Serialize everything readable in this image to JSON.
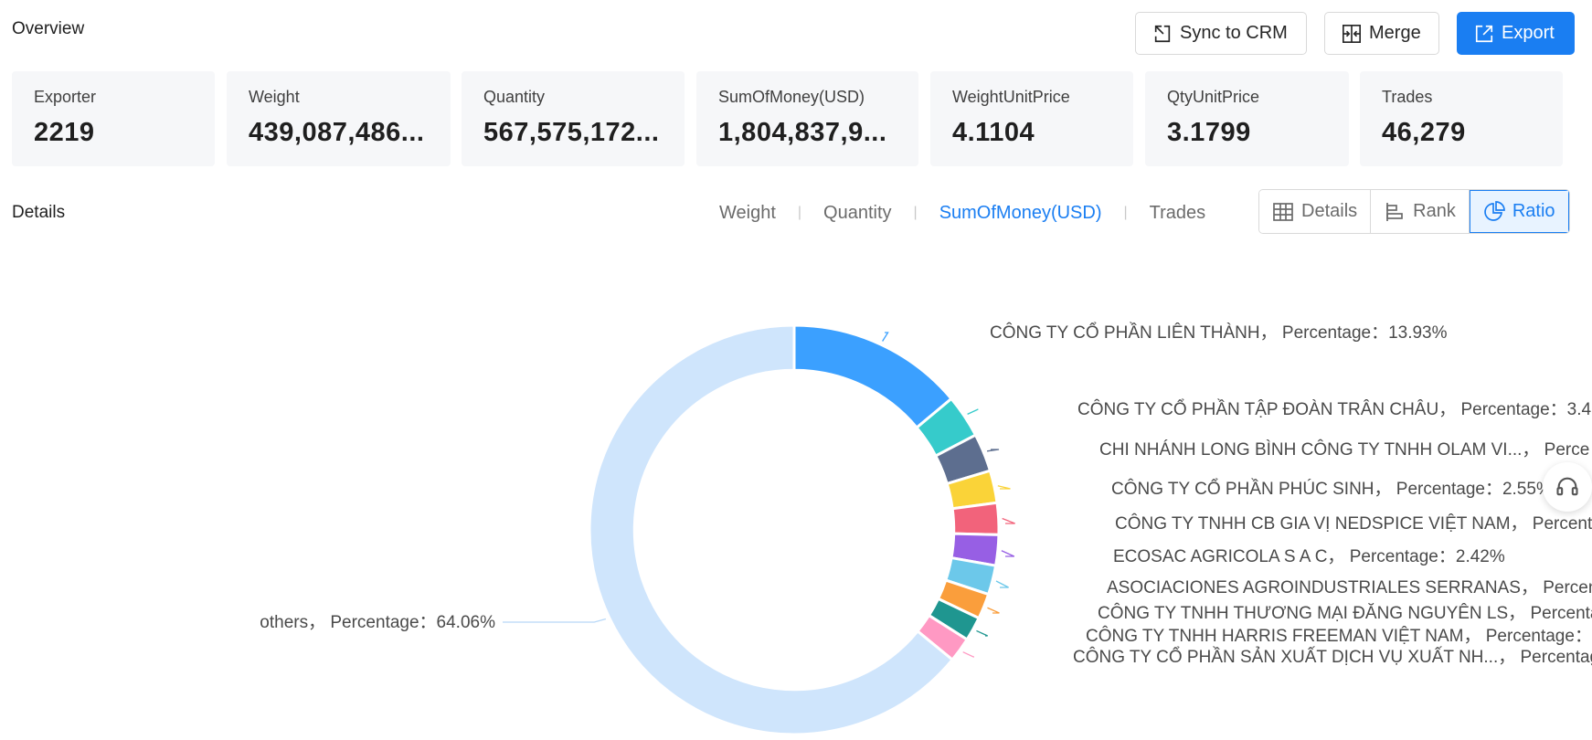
{
  "header": {
    "overview_title": "Overview",
    "sync_label": "Sync to CRM",
    "merge_label": "Merge",
    "export_label": "Export"
  },
  "stats": [
    {
      "label": "Exporter",
      "value": "2219"
    },
    {
      "label": "Weight",
      "value": "439,087,486..."
    },
    {
      "label": "Quantity",
      "value": "567,575,172..."
    },
    {
      "label": "SumOfMoney(USD)",
      "value": "1,804,837,9..."
    },
    {
      "label": "WeightUnitPrice",
      "value": "4.1104"
    },
    {
      "label": "QtyUnitPrice",
      "value": "3.1799"
    },
    {
      "label": "Trades",
      "value": "46,279"
    }
  ],
  "details": {
    "title": "Details",
    "metric_tabs": [
      "Weight",
      "Quantity",
      "SumOfMoney(USD)",
      "Trades"
    ],
    "active_metric": "SumOfMoney(USD)",
    "view_buttons": [
      "Details",
      "Rank",
      "Ratio"
    ],
    "active_view": "Ratio"
  },
  "chart_data": {
    "type": "pie",
    "inner_radius_ratio": 0.78,
    "slices": [
      {
        "name": "CÔNG TY CỔ PHẦN LIÊN THÀNH",
        "label": "CÔNG TY CỔ PHẦN LIÊN THÀNH，  Percentage：13.93%",
        "value": 13.93,
        "color": "#3ba0ff"
      },
      {
        "name": "CÔNG TY CỔ PHẦN TẬP ĐOÀN TRÂN CHÂU",
        "label": "CÔNG TY CỔ PHẦN TẬP ĐOÀN TRÂN CHÂU，  Percentage：3.4",
        "value": 3.4,
        "color": "#36cbcb"
      },
      {
        "name": "CHI NHÁNH LONG BÌNH CÔNG TY TNHH OLAM VI...",
        "label": "CHI NHÁNH LONG BÌNH CÔNG TY TNHH OLAM VI...，  Perce",
        "value": 3.0,
        "color": "#5d6e8f"
      },
      {
        "name": "CÔNG TY CỔ PHẦN PHÚC SINH",
        "label": "CÔNG TY CỔ PHẦN PHÚC SINH，  Percentage：2.55%",
        "value": 2.55,
        "color": "#fad338"
      },
      {
        "name": "CÔNG TY TNHH CB GIA VỊ NEDSPICE VIỆT NAM",
        "label": "CÔNG TY TNHH CB GIA VỊ NEDSPICE VIỆT NAM，  Percent",
        "value": 2.5,
        "color": "#f2637b"
      },
      {
        "name": "ECOSAC AGRICOLA S A C",
        "label": "ECOSAC AGRICOLA S A C，  Percentage：2.42%",
        "value": 2.42,
        "color": "#975fe4"
      },
      {
        "name": "ASOCIACIONES AGROINDUSTRIALES SERRANAS",
        "label": "ASOCIACIONES AGROINDUSTRIALES SERRANAS，  Percenta",
        "value": 2.3,
        "color": "#6cc8ea"
      },
      {
        "name": "CÔNG TY TNHH THƯƠNG MẠI ĐĂNG NGUYÊN LS",
        "label": "CÔNG TY TNHH THƯƠNG MẠI ĐĂNG NGUYÊN LS，  Percenta",
        "value": 2.0,
        "color": "#fa9e3c"
      },
      {
        "name": "CÔNG TY TNHH HARRIS FREEMAN VIỆT NAM",
        "label": "CÔNG TY TNHH HARRIS FREEMAN VIỆT NAM，  Percentage：",
        "value": 1.9,
        "color": "#1f9690"
      },
      {
        "name": "CÔNG TY CỔ PHẦN SẢN XUẤT DỊCH VỤ XUẤT NH...",
        "label": "CÔNG TY CỔ PHẦN SẢN XUẤT DỊCH VỤ XUẤT NH...，  Percentag",
        "value": 1.94,
        "color": "#ff99c3"
      },
      {
        "name": "others",
        "label": "others，  Percentage：64.06%",
        "value": 64.06,
        "color": "#cfe5fc"
      }
    ]
  }
}
